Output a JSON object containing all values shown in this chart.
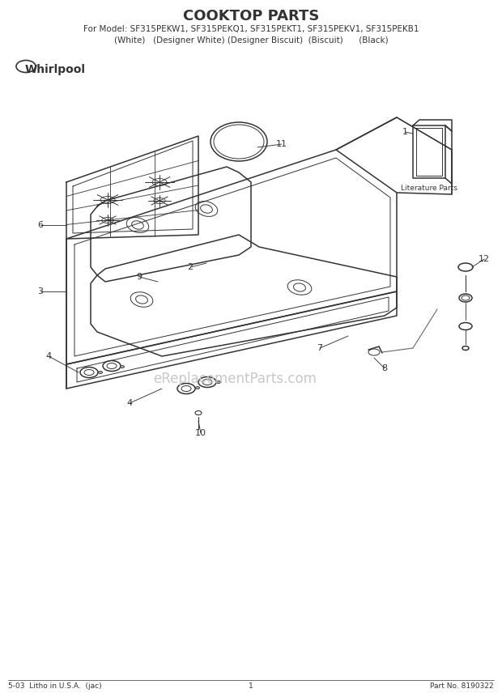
{
  "title": "COOKTOP PARTS",
  "subtitle1": "For Model: SF315PEKW1, SF315PEKQ1, SF315PEKT1, SF315PEKV1, SF315PEKB1",
  "subtitle2": "(White)   (Designer White) (Designer Biscuit)  (Biscuit)      (Black)",
  "footer_left": "5-03  Litho in U.S.A.  (jac)",
  "footer_center": "1",
  "footer_right": "Part No. 8190322",
  "bg_color": "#ffffff",
  "line_color": "#333333",
  "watermark": "eReplacementParts.com",
  "watermark_color": "#c8c8c8"
}
